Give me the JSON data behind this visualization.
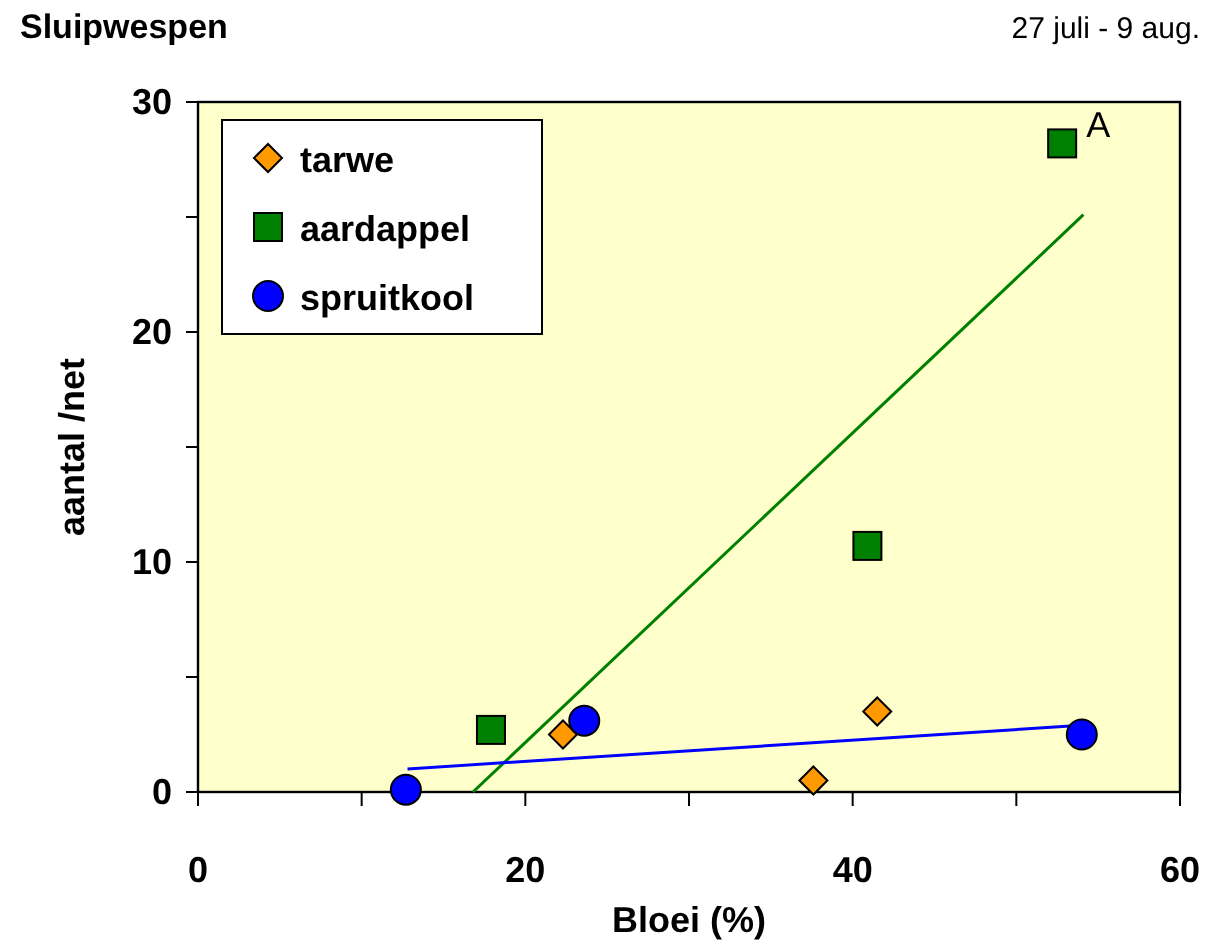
{
  "chart_data": {
    "type": "scatter",
    "title": "Sluipwespen",
    "subtitle": "27 juli - 9 aug.",
    "xlabel": "Bloei (%)",
    "ylabel": "aantal /net",
    "xlim": [
      0,
      60
    ],
    "xticks": [
      0,
      {
        "value": 10,
        "label": null
      },
      20,
      {
        "value": 30,
        "label": null
      },
      40,
      {
        "value": 50,
        "label": null
      },
      60
    ],
    "ylim": [
      0,
      30
    ],
    "yticks": [
      0,
      {
        "value": 5,
        "label": null
      },
      10,
      {
        "value": 15,
        "label": null
      },
      20,
      {
        "value": 25,
        "label": null
      },
      30
    ],
    "grid": false,
    "legend": "top left",
    "annotations": [
      {
        "text": "A",
        "x": 52.8,
        "y": 28.2
      }
    ],
    "series": [
      {
        "name": "tarwe",
        "color": "#ff9900",
        "marker": "diamond",
        "x": [
          22.3,
          37.6,
          41.5
        ],
        "values": [
          2.5,
          0.5,
          3.5
        ]
      },
      {
        "name": "aardappel",
        "color": "#008000",
        "marker": "square",
        "x": [
          17.9,
          40.9,
          52.8
        ],
        "values": [
          2.7,
          10.7,
          28.2
        ]
      },
      {
        "name": "spruitkool",
        "color": "#0000ff",
        "marker": "circle",
        "x": [
          12.7,
          23.6,
          54.0
        ],
        "values": [
          0.1,
          3.1,
          2.5
        ]
      },
      {
        "type": "line",
        "color": "#008000",
        "marker": "none",
        "x": [
          16.8,
          54.1
        ],
        "values": [
          0,
          25.1
        ]
      },
      {
        "type": "line",
        "color": "#0000ff",
        "marker": "none",
        "x": [
          12.8,
          54.0
        ],
        "values": [
          1.0,
          2.9
        ]
      }
    ]
  }
}
